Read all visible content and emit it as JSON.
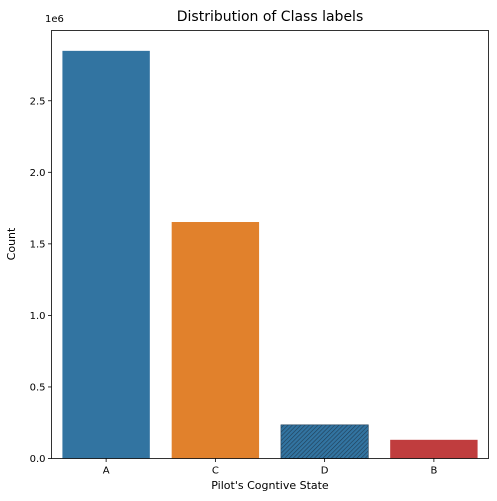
{
  "chart_data": {
    "type": "bar",
    "title": "Distribution of Class labels",
    "xlabel": "Pilot's Cogntive State",
    "ylabel": "Count",
    "y_offset_label": "1e6",
    "categories": [
      "A",
      "C",
      "D",
      "B"
    ],
    "values": [
      2848809,
      1652686,
      235329,
      130597
    ],
    "colors": [
      "#3274a1",
      "#e1812c",
      "#3a923a",
      "#c03d3e"
    ],
    "y_ticks": [
      0.0,
      0.5,
      1.0,
      1.5,
      2.0,
      2.5
    ],
    "y_tick_labels": [
      "0.0",
      "0.5",
      "1.0",
      "1.5",
      "2.0",
      "2.5"
    ],
    "ylim": [
      0,
      2991000
    ],
    "grid": false,
    "legend": "none"
  }
}
